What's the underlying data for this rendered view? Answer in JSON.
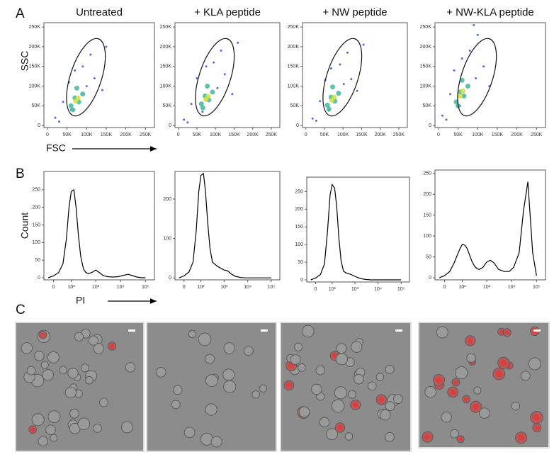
{
  "panel_labels": [
    "A",
    "B",
    "C"
  ],
  "chart_data": [
    {
      "type": "scatter",
      "title": "Untreated",
      "xlabel": "FSC",
      "ylabel": "SSC",
      "xlim": [
        -9000,
        273000
      ],
      "ylim": [
        -5000,
        261000
      ],
      "xticks": [
        0,
        {
          "value": 50000,
          "label": "50K"
        },
        {
          "value": 100000,
          "label": "100K"
        },
        {
          "value": 150000,
          "label": "150K"
        },
        {
          "value": 200000,
          "label": "200K"
        },
        {
          "value": 250000,
          "label": "250K"
        }
      ],
      "yticks": [
        0,
        {
          "value": 50000,
          "label": "50K"
        },
        {
          "value": 100000,
          "label": "100K"
        },
        {
          "value": 150000,
          "label": "150K"
        },
        {
          "value": 200000,
          "label": "200K"
        },
        {
          "value": 250000,
          "label": "250K"
        }
      ],
      "series": [
        {
          "color": "#3a4fd8",
          "x": [
            20000,
            40000,
            55000,
            60000,
            90000,
            100000,
            110000,
            120000,
            140000,
            150000,
            70000,
            30000
          ],
          "y": [
            20000,
            60000,
            110000,
            40000,
            150000,
            100000,
            180000,
            120000,
            90000,
            200000,
            140000,
            10000
          ]
        },
        {
          "color": "#3fb7a0",
          "x": [
            60000,
            70000,
            80000,
            90000,
            75000,
            65000
          ],
          "y": [
            50000,
            70000,
            60000,
            80000,
            95000,
            40000
          ]
        },
        {
          "color": "#d6e03a",
          "x": [
            72000,
            78000
          ],
          "y": [
            62000,
            70000
          ]
        }
      ]
    },
    {
      "type": "scatter",
      "title": "+  KLA peptide",
      "xlim": [
        -9000,
        273000
      ],
      "ylim": [
        -5000,
        261000
      ],
      "xticks": [
        0,
        {
          "value": 50000,
          "label": "50K"
        },
        {
          "value": 100000,
          "label": "100K"
        },
        {
          "value": 150000,
          "label": "150K"
        },
        {
          "value": 200000,
          "label": "200K"
        },
        {
          "value": 250000,
          "label": "250K"
        }
      ],
      "yticks": [
        0,
        {
          "value": 50000,
          "label": "50K"
        },
        {
          "value": 100000,
          "label": "100K"
        },
        {
          "value": 150000,
          "label": "150K"
        },
        {
          "value": 200000,
          "label": "200K"
        },
        {
          "value": 250000,
          "label": "250K"
        }
      ],
      "series": [
        {
          "color": "#3a4fd8",
          "x": [
            15000,
            35000,
            50000,
            65000,
            95000,
            105000,
            115000,
            125000,
            145000,
            160000,
            75000,
            25000
          ],
          "y": [
            15000,
            55000,
            120000,
            35000,
            160000,
            95000,
            190000,
            130000,
            80000,
            210000,
            150000,
            8000
          ]
        },
        {
          "color": "#3fb7a0",
          "x": [
            62000,
            72000,
            82000,
            92000,
            78000,
            66000
          ],
          "y": [
            55000,
            75000,
            65000,
            85000,
            100000,
            45000
          ]
        },
        {
          "color": "#d6e03a",
          "x": [
            74000,
            80000
          ],
          "y": [
            66000,
            74000
          ]
        }
      ]
    },
    {
      "type": "scatter",
      "title": "+ NW peptide",
      "xlim": [
        -9000,
        273000
      ],
      "ylim": [
        -5000,
        261000
      ],
      "xticks": [
        0,
        {
          "value": 50000,
          "label": "50K"
        },
        {
          "value": 100000,
          "label": "100K"
        },
        {
          "value": 150000,
          "label": "150K"
        },
        {
          "value": 200000,
          "label": "200K"
        },
        {
          "value": 250000,
          "label": "250K"
        }
      ],
      "yticks": [
        0,
        {
          "value": 50000,
          "label": "50K"
        },
        {
          "value": 100000,
          "label": "100K"
        },
        {
          "value": 150000,
          "label": "150K"
        },
        {
          "value": 200000,
          "label": "200K"
        },
        {
          "value": 250000,
          "label": "250K"
        }
      ],
      "series": [
        {
          "color": "#3a4fd8",
          "x": [
            18000,
            38000,
            52000,
            62000,
            92000,
            102000,
            112000,
            122000,
            138000,
            155000,
            68000,
            28000
          ],
          "y": [
            18000,
            62000,
            115000,
            38000,
            155000,
            105000,
            185000,
            118000,
            88000,
            205000,
            145000,
            12000
          ]
        },
        {
          "color": "#3fb7a0",
          "x": [
            58000,
            68000,
            78000,
            88000,
            72000,
            62000
          ],
          "y": [
            52000,
            72000,
            62000,
            82000,
            98000,
            42000
          ]
        },
        {
          "color": "#d6e03a",
          "x": [
            70000,
            76000
          ],
          "y": [
            64000,
            72000
          ]
        }
      ]
    },
    {
      "type": "scatter",
      "title": "+ NW-KLA peptide",
      "xlim": [
        -9000,
        273000
      ],
      "ylim": [
        -5000,
        261000
      ],
      "xticks": [
        0,
        {
          "value": 50000,
          "label": "50K"
        },
        {
          "value": 100000,
          "label": "100K"
        },
        {
          "value": 150000,
          "label": "150K"
        },
        {
          "value": 200000,
          "label": "200K"
        },
        {
          "value": 250000,
          "label": "250K"
        }
      ],
      "yticks": [
        0,
        {
          "value": 50000,
          "label": "50K"
        },
        {
          "value": 100000,
          "label": "100K"
        },
        {
          "value": 150000,
          "label": "150K"
        },
        {
          "value": 200000,
          "label": "200K"
        },
        {
          "value": 250000,
          "label": "250K"
        }
      ],
      "series": [
        {
          "color": "#3a4fd8",
          "x": [
            10000,
            30000,
            40000,
            55000,
            80000,
            95000,
            100000,
            115000,
            130000,
            90000,
            60000,
            20000
          ],
          "y": [
            25000,
            80000,
            140000,
            50000,
            190000,
            120000,
            230000,
            150000,
            100000,
            255000,
            170000,
            15000
          ]
        },
        {
          "color": "#3fb7a0",
          "x": [
            45000,
            55000,
            65000,
            75000,
            60000,
            50000
          ],
          "y": [
            60000,
            85000,
            75000,
            100000,
            115000,
            50000
          ]
        },
        {
          "color": "#d6e03a",
          "x": [
            55000,
            62000
          ],
          "y": [
            75000,
            88000
          ]
        }
      ]
    },
    {
      "type": "line",
      "xscale": "biexponential",
      "xlabel": "PI",
      "ylabel": "Count",
      "color": "#000000",
      "xlim": [
        -40,
        230000
      ],
      "ylim": [
        -6,
        302
      ],
      "xticks": [
        0,
        {
          "value": 100,
          "label": "10²"
        },
        {
          "value": 1000,
          "label": "10³"
        },
        {
          "value": 10000,
          "label": "10⁴"
        },
        {
          "value": 100000,
          "label": "10⁵"
        }
      ],
      "yticks": [
        0,
        50,
        100,
        150,
        200,
        250
      ],
      "x": [
        -20,
        0,
        20,
        40,
        60,
        80,
        100,
        130,
        160,
        200,
        250,
        320,
        400,
        500,
        700,
        1000,
        1400,
        2000,
        3000,
        5000,
        8000,
        12000,
        20000,
        30000,
        45000,
        70000,
        100000
      ],
      "values": [
        0,
        5,
        15,
        40,
        110,
        200,
        245,
        250,
        200,
        120,
        60,
        25,
        15,
        12,
        15,
        22,
        15,
        6,
        3,
        2,
        3,
        6,
        10,
        6,
        2,
        0,
        0
      ]
    },
    {
      "type": "line",
      "xscale": "biexponential",
      "color": "#000000",
      "xlim": [
        -40,
        230000
      ],
      "ylim": [
        -5,
        270
      ],
      "xticks": [
        0,
        {
          "value": 100,
          "label": "10²"
        },
        {
          "value": 1000,
          "label": "10³"
        },
        {
          "value": 10000,
          "label": "10⁴"
        },
        {
          "value": 100000,
          "label": "10⁵"
        }
      ],
      "yticks": [
        0,
        100,
        200
      ],
      "x": [
        -20,
        0,
        20,
        40,
        60,
        80,
        100,
        130,
        160,
        200,
        250,
        320,
        400,
        500,
        700,
        1000,
        1400,
        2000,
        3000,
        5000,
        8000,
        12000,
        20000,
        30000,
        45000,
        70000,
        100000
      ],
      "values": [
        0,
        5,
        15,
        40,
        120,
        220,
        260,
        265,
        220,
        140,
        75,
        40,
        35,
        30,
        25,
        20,
        18,
        10,
        4,
        1,
        0,
        0,
        0,
        0,
        0,
        0,
        0
      ]
    },
    {
      "type": "line",
      "xscale": "biexponential",
      "color": "#000000",
      "xlim": [
        -40,
        230000
      ],
      "ylim": [
        -6,
        291
      ],
      "xticks": [
        0,
        {
          "value": 100,
          "label": "10²"
        },
        {
          "value": 1000,
          "label": "10³"
        },
        {
          "value": 10000,
          "label": "10⁴"
        },
        {
          "value": 100000,
          "label": "10⁵"
        }
      ],
      "yticks": [
        0,
        50,
        100,
        150,
        200,
        250
      ],
      "x": [
        -20,
        0,
        20,
        40,
        60,
        80,
        100,
        130,
        160,
        200,
        250,
        320,
        400,
        500,
        700,
        1000,
        1400,
        2000,
        3000,
        5000,
        8000,
        12000,
        20000,
        30000,
        45000,
        70000,
        100000
      ],
      "values": [
        0,
        5,
        15,
        45,
        140,
        240,
        270,
        260,
        210,
        120,
        55,
        25,
        20,
        18,
        15,
        10,
        6,
        3,
        1,
        0,
        0,
        0,
        0,
        0,
        0,
        0,
        0
      ]
    },
    {
      "type": "line",
      "xscale": "biexponential",
      "color": "#000000",
      "xlim": [
        -40,
        230000
      ],
      "ylim": [
        -5,
        258
      ],
      "xticks": [
        0,
        {
          "value": 100,
          "label": "10²"
        },
        {
          "value": 1000,
          "label": "10³"
        },
        {
          "value": 10000,
          "label": "10⁴"
        },
        {
          "value": 100000,
          "label": "10⁵"
        }
      ],
      "yticks": [
        0,
        50,
        100,
        150,
        200,
        250
      ],
      "x": [
        -20,
        0,
        20,
        40,
        60,
        80,
        100,
        130,
        160,
        200,
        250,
        320,
        400,
        500,
        700,
        1000,
        1400,
        2000,
        3000,
        5000,
        8000,
        12000,
        20000,
        30000,
        45000,
        70000,
        100000
      ],
      "values": [
        0,
        5,
        15,
        35,
        55,
        70,
        80,
        78,
        70,
        55,
        40,
        28,
        22,
        20,
        25,
        38,
        42,
        35,
        20,
        15,
        15,
        25,
        60,
        160,
        230,
        60,
        5
      ]
    }
  ]
}
